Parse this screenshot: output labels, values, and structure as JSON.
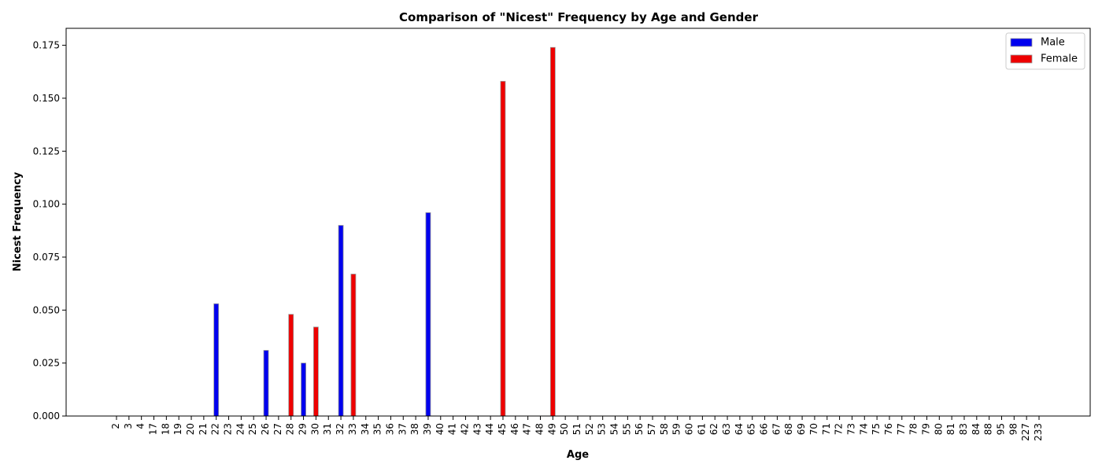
{
  "chart_data": {
    "type": "bar",
    "title": "Comparison of \"Nicest\" Frequency by Age and Gender",
    "xlabel": "Age",
    "ylabel": "Nicest Frequency",
    "ylim": [
      0,
      0.183
    ],
    "yticks": [
      "0.000",
      "0.025",
      "0.050",
      "0.075",
      "0.100",
      "0.125",
      "0.150",
      "0.175"
    ],
    "ytick_values": [
      0,
      0.025,
      0.05,
      0.075,
      0.1,
      0.125,
      0.15,
      0.175
    ],
    "grid": false,
    "legend_position": "top-right",
    "categories": [
      "2",
      "3",
      "4",
      "17",
      "18",
      "19",
      "20",
      "21",
      "22",
      "23",
      "24",
      "25",
      "26",
      "27",
      "28",
      "29",
      "30",
      "31",
      "32",
      "33",
      "34",
      "35",
      "36",
      "37",
      "38",
      "39",
      "40",
      "41",
      "42",
      "43",
      "44",
      "45",
      "46",
      "47",
      "48",
      "49",
      "50",
      "51",
      "52",
      "53",
      "54",
      "55",
      "56",
      "57",
      "58",
      "59",
      "60",
      "61",
      "62",
      "63",
      "64",
      "65",
      "66",
      "67",
      "68",
      "69",
      "70",
      "71",
      "72",
      "73",
      "74",
      "75",
      "76",
      "77",
      "78",
      "79",
      "80",
      "81",
      "83",
      "84",
      "88",
      "95",
      "98",
      "227",
      "233"
    ],
    "series": [
      {
        "name": "Male",
        "color": "#0000ee",
        "values": [
          0,
          0,
          0,
          0,
          0,
          0,
          0,
          0,
          0.053,
          0,
          0,
          0,
          0.031,
          0,
          0,
          0.025,
          0,
          0,
          0.09,
          0,
          0,
          0,
          0,
          0,
          0,
          0.096,
          0,
          0,
          0,
          0,
          0,
          0,
          0,
          0,
          0,
          0,
          0,
          0,
          0,
          0,
          0,
          0,
          0,
          0,
          0,
          0,
          0,
          0,
          0,
          0,
          0,
          0,
          0,
          0,
          0,
          0,
          0,
          0,
          0,
          0,
          0,
          0,
          0,
          0,
          0,
          0,
          0,
          0,
          0,
          0,
          0,
          0,
          0,
          0,
          0
        ]
      },
      {
        "name": "Female",
        "color": "#ee0000",
        "values": [
          0,
          0,
          0,
          0,
          0,
          0,
          0,
          0,
          0,
          0,
          0,
          0,
          0,
          0,
          0.048,
          0,
          0.042,
          0,
          0,
          0.067,
          0,
          0,
          0,
          0,
          0,
          0,
          0,
          0,
          0,
          0,
          0,
          0.158,
          0,
          0,
          0,
          0.174,
          0,
          0,
          0,
          0,
          0,
          0,
          0,
          0,
          0,
          0,
          0,
          0,
          0,
          0,
          0,
          0,
          0,
          0,
          0,
          0,
          0,
          0,
          0,
          0,
          0,
          0,
          0,
          0,
          0,
          0,
          0,
          0,
          0,
          0,
          0,
          0,
          0,
          0,
          0
        ]
      }
    ]
  }
}
